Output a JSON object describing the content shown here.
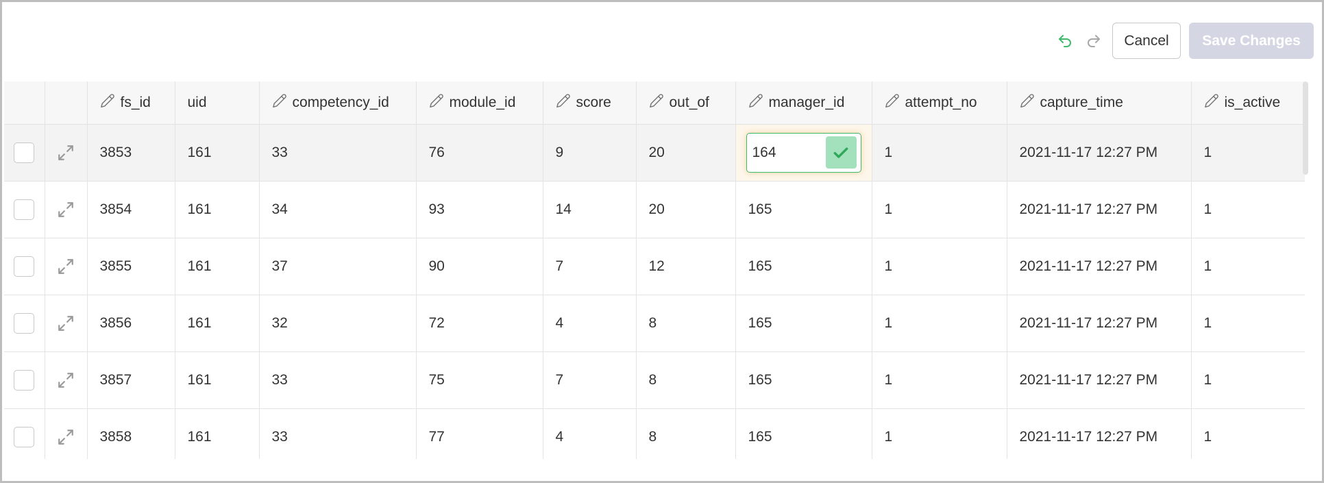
{
  "toolbar": {
    "undo_icon": "undo-icon",
    "redo_icon": "redo-icon",
    "cancel_label": "Cancel",
    "save_label": "Save Changes"
  },
  "colors": {
    "accent_green": "#3fba6a",
    "save_disabled_bg": "#d5d6e3",
    "editing_bg": "#fdf6ea"
  },
  "columns": [
    {
      "key": "fs_id",
      "label": "fs_id",
      "editable": true
    },
    {
      "key": "uid",
      "label": "uid",
      "editable": false
    },
    {
      "key": "competency_id",
      "label": "competency_id",
      "editable": true
    },
    {
      "key": "module_id",
      "label": "module_id",
      "editable": true
    },
    {
      "key": "score",
      "label": "score",
      "editable": true
    },
    {
      "key": "out_of",
      "label": "out_of",
      "editable": true
    },
    {
      "key": "manager_id",
      "label": "manager_id",
      "editable": true
    },
    {
      "key": "attempt_no",
      "label": "attempt_no",
      "editable": true
    },
    {
      "key": "capture_time",
      "label": "capture_time",
      "editable": true
    },
    {
      "key": "is_active",
      "label": "is_active",
      "editable": true
    }
  ],
  "rows": [
    [
      "3853",
      "161",
      "33",
      "76",
      "9",
      "20",
      "164",
      "1",
      "2021-11-17 12:27 PM",
      "1"
    ],
    [
      "3854",
      "161",
      "34",
      "93",
      "14",
      "20",
      "165",
      "1",
      "2021-11-17 12:27 PM",
      "1"
    ],
    [
      "3855",
      "161",
      "37",
      "90",
      "7",
      "12",
      "165",
      "1",
      "2021-11-17 12:27 PM",
      "1"
    ],
    [
      "3856",
      "161",
      "32",
      "72",
      "4",
      "8",
      "165",
      "1",
      "2021-11-17 12:27 PM",
      "1"
    ],
    [
      "3857",
      "161",
      "33",
      "75",
      "7",
      "8",
      "165",
      "1",
      "2021-11-17 12:27 PM",
      "1"
    ],
    [
      "3858",
      "161",
      "33",
      "77",
      "4",
      "8",
      "165",
      "1",
      "2021-11-17 12:27 PM",
      "1"
    ]
  ],
  "editing_cell": {
    "row": 0,
    "col": 6,
    "value": "164"
  },
  "selected_row": 0
}
